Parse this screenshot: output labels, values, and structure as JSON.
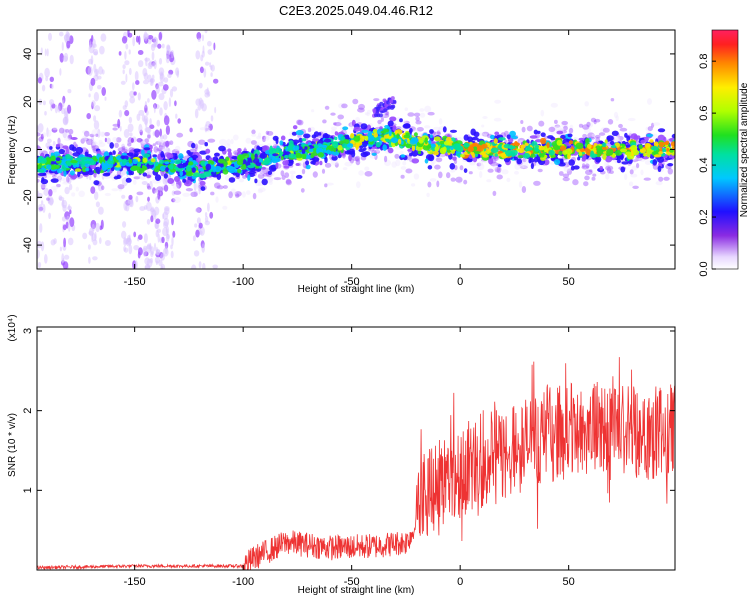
{
  "title": "C2E3.2025.049.04.46.R12",
  "chart_data": [
    {
      "type": "heatmap",
      "xlabel": "Height of straight line (km)",
      "ylabel": "Frequency (Hz)",
      "xlim": [
        -195,
        99
      ],
      "ylim": [
        -50,
        50
      ],
      "xticks": [
        -150,
        -100,
        -50,
        0,
        50
      ],
      "yticks": [
        -40,
        -20,
        0,
        20,
        40
      ],
      "colorbar": {
        "label": "Normalized spectral amplitude",
        "range": [
          0.0,
          0.92
        ],
        "ticks": [
          "0.0",
          "0.2",
          "0.4",
          "0.6",
          "0.8"
        ],
        "colormap": "rainbow (violet to red)"
      },
      "ridge_center_hz": [
        {
          "x": -195,
          "y": -6
        },
        {
          "x": -150,
          "y": -5
        },
        {
          "x": -120,
          "y": -8
        },
        {
          "x": -100,
          "y": -6
        },
        {
          "x": -80,
          "y": -1
        },
        {
          "x": -60,
          "y": 1
        },
        {
          "x": -35,
          "y": 6
        },
        {
          "x": -20,
          "y": 3
        },
        {
          "x": 0,
          "y": 0
        },
        {
          "x": 99,
          "y": 0
        }
      ],
      "secondary_band_hz": {
        "x_range": [
          -40,
          -30
        ],
        "y_range": [
          16,
          20
        ]
      },
      "grid": false
    },
    {
      "type": "line",
      "xlabel": "Height of straight line (km)",
      "ylabel": "SNR (10 * v/v)",
      "y_multiplier_label": "(x10⁴)",
      "xlim": [
        -195,
        99
      ],
      "ylim": [
        0,
        3.05
      ],
      "xticks": [
        -150,
        -100,
        -50,
        0,
        50
      ],
      "yticks": [
        1,
        2,
        3
      ],
      "color": "#ee3333",
      "envelope": [
        {
          "x": -195,
          "y": 0.03
        },
        {
          "x": -150,
          "y": 0.05
        },
        {
          "x": -100,
          "y": 0.05
        },
        {
          "x": -95,
          "y": 0.15
        },
        {
          "x": -80,
          "y": 0.35
        },
        {
          "x": -60,
          "y": 0.28
        },
        {
          "x": -40,
          "y": 0.3
        },
        {
          "x": -25,
          "y": 0.35
        },
        {
          "x": -21,
          "y": 0.5
        },
        {
          "x": -20,
          "y": 1.0
        },
        {
          "x": -10,
          "y": 1.1
        },
        {
          "x": 0,
          "y": 1.25
        },
        {
          "x": 20,
          "y": 1.45
        },
        {
          "x": 40,
          "y": 1.7
        },
        {
          "x": 60,
          "y": 1.78
        },
        {
          "x": 80,
          "y": 1.75
        },
        {
          "x": 99,
          "y": 1.72
        }
      ],
      "grid": false
    }
  ]
}
